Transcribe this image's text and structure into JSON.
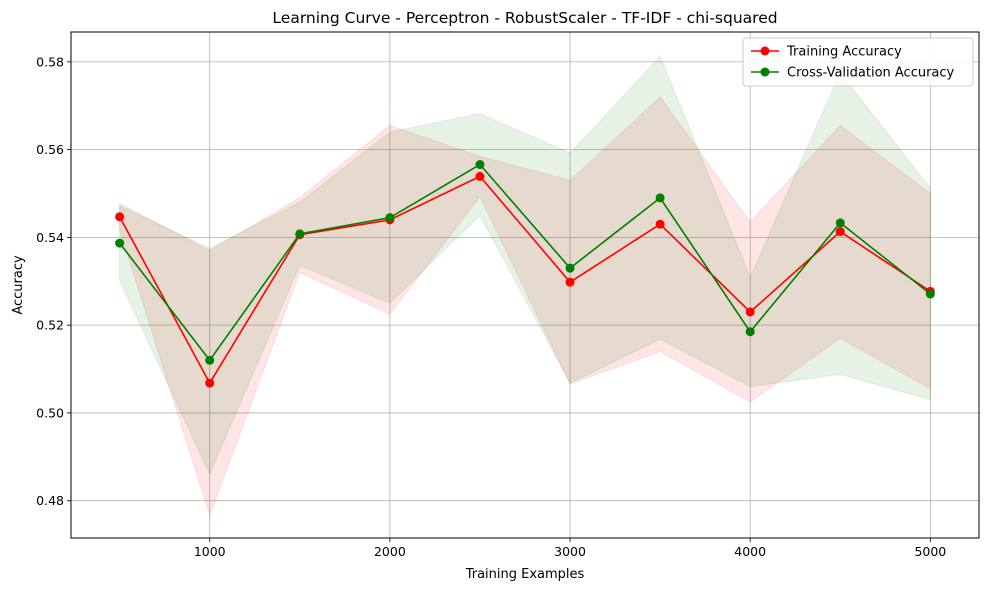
{
  "chart_data": {
    "type": "line",
    "title": "Learning Curve - Perceptron - RobustScaler - TF-IDF - chi-squared",
    "xlabel": "Training Examples",
    "ylabel": "Accuracy",
    "xlim": [
      230,
      5270
    ],
    "ylim": [
      0.4715,
      0.5868
    ],
    "xticks": [
      1000,
      2000,
      3000,
      4000,
      5000
    ],
    "yticks": [
      0.48,
      0.5,
      0.52,
      0.54,
      0.56,
      0.58
    ],
    "ytick_labels": [
      "0.48",
      "0.50",
      "0.52",
      "0.54",
      "0.56",
      "0.58"
    ],
    "grid": true,
    "legend_position": "top-right",
    "x": [
      500,
      1000,
      1500,
      2000,
      2500,
      3000,
      3500,
      4000,
      4500,
      5000
    ],
    "series": [
      {
        "name": "Training Accuracy",
        "color": "#ff0000",
        "band_color": "#ff0000",
        "values": [
          0.5447,
          0.5068,
          0.5406,
          0.544,
          0.5539,
          0.5298,
          0.543,
          0.523,
          0.5413,
          0.5277
        ],
        "band_upper": [
          0.5477,
          0.537,
          0.549,
          0.5655,
          0.5585,
          0.553,
          0.572,
          0.5435,
          0.5655,
          0.55
        ],
        "band_lower": [
          0.5417,
          0.4767,
          0.532,
          0.5225,
          0.5493,
          0.5066,
          0.514,
          0.5025,
          0.517,
          0.5055
        ]
      },
      {
        "name": "Cross-Validation Accuracy",
        "color": "#008000",
        "band_color": "#008000",
        "values": [
          0.5387,
          0.512,
          0.5408,
          0.5445,
          0.5566,
          0.533,
          0.549,
          0.5185,
          0.5433,
          0.5271
        ],
        "band_upper": [
          0.5472,
          0.5375,
          0.548,
          0.564,
          0.5682,
          0.5592,
          0.5812,
          0.531,
          0.5775,
          0.5512
        ],
        "band_lower": [
          0.5302,
          0.486,
          0.5336,
          0.525,
          0.545,
          0.5068,
          0.5168,
          0.506,
          0.5088,
          0.503
        ]
      }
    ]
  }
}
